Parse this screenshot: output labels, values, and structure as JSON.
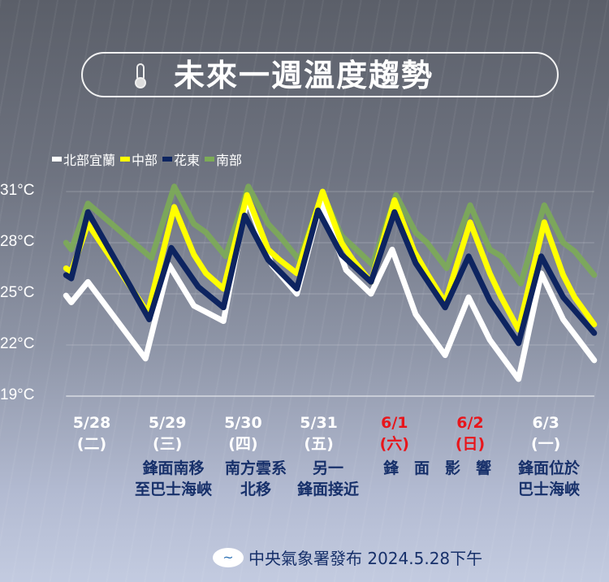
{
  "title": "未來一週溫度趨勢",
  "icons": {
    "title_icon": "thermometer-icon",
    "footer_icon": "cwa-logo-icon"
  },
  "colors": {
    "north": "#ffffff",
    "central": "#ffff00",
    "east": "#0d2460",
    "south": "#7cab57",
    "weekend": "#e8151b",
    "note": "#17306a"
  },
  "chart_data": {
    "type": "line",
    "ylim": [
      19,
      31
    ],
    "yticks": [
      31,
      28,
      25,
      22,
      19
    ],
    "ytick_labels": [
      "31°C",
      "28°C",
      "25°C",
      "22°C",
      "19°C"
    ],
    "grid": true,
    "legend_position": "top-left",
    "xlim": [
      -0.34,
      6.64
    ],
    "x_ticks": [
      {
        "x": 0,
        "date": "5/28",
        "weekday": "(二)",
        "weekend": false
      },
      {
        "x": 1,
        "date": "5/29",
        "weekday": "(三)",
        "weekend": false
      },
      {
        "x": 2,
        "date": "5/30",
        "weekday": "(四)",
        "weekend": false
      },
      {
        "x": 3,
        "date": "5/31",
        "weekday": "(五)",
        "weekend": false
      },
      {
        "x": 4,
        "date": "6/1",
        "weekday": "(六)",
        "weekend": true
      },
      {
        "x": 5,
        "date": "6/2",
        "weekday": "(日)",
        "weekend": true
      },
      {
        "x": 6,
        "date": "6/3",
        "weekday": "(一)",
        "weekend": false
      }
    ],
    "series": [
      {
        "name": "南部",
        "color": "#7cab57",
        "points": [
          [
            -0.34,
            28.0
          ],
          [
            -0.27,
            27.6
          ],
          [
            -0.05,
            30.3
          ],
          [
            0.79,
            27.1
          ],
          [
            1.09,
            31.3
          ],
          [
            1.35,
            29.1
          ],
          [
            1.51,
            28.6
          ],
          [
            1.77,
            27.2
          ],
          [
            2.07,
            31.3
          ],
          [
            2.33,
            29.1
          ],
          [
            2.48,
            28.4
          ],
          [
            2.74,
            27.0
          ],
          [
            3.05,
            30.9
          ],
          [
            3.3,
            28.4
          ],
          [
            3.45,
            27.8
          ],
          [
            3.71,
            26.7
          ],
          [
            4.02,
            30.8
          ],
          [
            4.28,
            28.6
          ],
          [
            4.43,
            28.0
          ],
          [
            4.69,
            26.5
          ],
          [
            5.0,
            30.2
          ],
          [
            5.26,
            27.6
          ],
          [
            5.41,
            27.2
          ],
          [
            5.67,
            25.6
          ],
          [
            5.98,
            30.2
          ],
          [
            6.23,
            28.0
          ],
          [
            6.38,
            27.5
          ],
          [
            6.64,
            26.1
          ]
        ]
      },
      {
        "name": "北部宜蘭",
        "color": "#ffffff",
        "points": [
          [
            -0.34,
            24.9
          ],
          [
            -0.27,
            24.5
          ],
          [
            -0.05,
            25.7
          ],
          [
            0.71,
            21.2
          ],
          [
            1.02,
            26.7
          ],
          [
            1.35,
            24.3
          ],
          [
            1.74,
            23.4
          ],
          [
            2.05,
            30.6
          ],
          [
            2.38,
            26.7
          ],
          [
            2.71,
            25.0
          ],
          [
            3.03,
            30.4
          ],
          [
            3.36,
            26.4
          ],
          [
            3.69,
            25.0
          ],
          [
            3.97,
            27.6
          ],
          [
            4.28,
            23.8
          ],
          [
            4.67,
            21.4
          ],
          [
            4.98,
            24.8
          ],
          [
            5.26,
            22.3
          ],
          [
            5.64,
            20.0
          ],
          [
            5.94,
            26.2
          ],
          [
            6.23,
            23.5
          ],
          [
            6.64,
            21.1
          ]
        ]
      },
      {
        "name": "中部",
        "color": "#ffff00",
        "points": [
          [
            -0.34,
            26.5
          ],
          [
            -0.27,
            26.3
          ],
          [
            -0.05,
            29.1
          ],
          [
            0.74,
            23.9
          ],
          [
            1.09,
            30.1
          ],
          [
            1.35,
            27.3
          ],
          [
            1.51,
            26.2
          ],
          [
            1.74,
            25.3
          ],
          [
            2.05,
            30.8
          ],
          [
            2.33,
            27.6
          ],
          [
            2.48,
            27.0
          ],
          [
            2.71,
            26.2
          ],
          [
            3.05,
            31.0
          ],
          [
            3.3,
            28.0
          ],
          [
            3.45,
            27.0
          ],
          [
            3.69,
            25.7
          ],
          [
            4.0,
            30.5
          ],
          [
            4.26,
            27.5
          ],
          [
            4.43,
            26.2
          ],
          [
            4.67,
            24.5
          ],
          [
            5.0,
            29.2
          ],
          [
            5.26,
            26.2
          ],
          [
            5.41,
            24.8
          ],
          [
            5.64,
            22.9
          ],
          [
            5.98,
            29.2
          ],
          [
            6.23,
            26.1
          ],
          [
            6.38,
            24.8
          ],
          [
            6.64,
            23.2
          ]
        ]
      },
      {
        "name": "花東",
        "color": "#0d2460",
        "points": [
          [
            -0.34,
            26.1
          ],
          [
            -0.27,
            25.9
          ],
          [
            -0.05,
            29.8
          ],
          [
            0.76,
            23.5
          ],
          [
            1.05,
            27.7
          ],
          [
            1.41,
            25.4
          ],
          [
            1.74,
            24.2
          ],
          [
            2.02,
            29.6
          ],
          [
            2.33,
            27.0
          ],
          [
            2.71,
            25.3
          ],
          [
            2.99,
            29.9
          ],
          [
            3.3,
            27.3
          ],
          [
            3.69,
            25.7
          ],
          [
            4.0,
            29.8
          ],
          [
            4.28,
            26.8
          ],
          [
            4.67,
            24.2
          ],
          [
            4.98,
            27.2
          ],
          [
            5.26,
            24.6
          ],
          [
            5.64,
            22.1
          ],
          [
            5.94,
            27.2
          ],
          [
            6.23,
            24.8
          ],
          [
            6.64,
            22.7
          ]
        ]
      }
    ]
  },
  "legend": [
    {
      "label": "北部宜蘭",
      "color": "#ffffff"
    },
    {
      "label": "中部",
      "color": "#ffff00"
    },
    {
      "label": "花東",
      "color": "#0d2460"
    },
    {
      "label": "南部",
      "color": "#7cab57"
    }
  ],
  "notes": [
    {
      "lines": [
        "鋒面南移",
        "至巴士海峽"
      ]
    },
    {
      "lines": [
        "南方雲系",
        "北移"
      ]
    },
    {
      "lines": [
        "另一",
        "鋒面接近"
      ]
    },
    {
      "lines": [
        "鋒　面　影　響"
      ]
    },
    {
      "lines": [
        "鋒面位於",
        "巴士海峽"
      ]
    }
  ],
  "footer": {
    "text": "中央氣象署發布 2024.5.28下午"
  }
}
